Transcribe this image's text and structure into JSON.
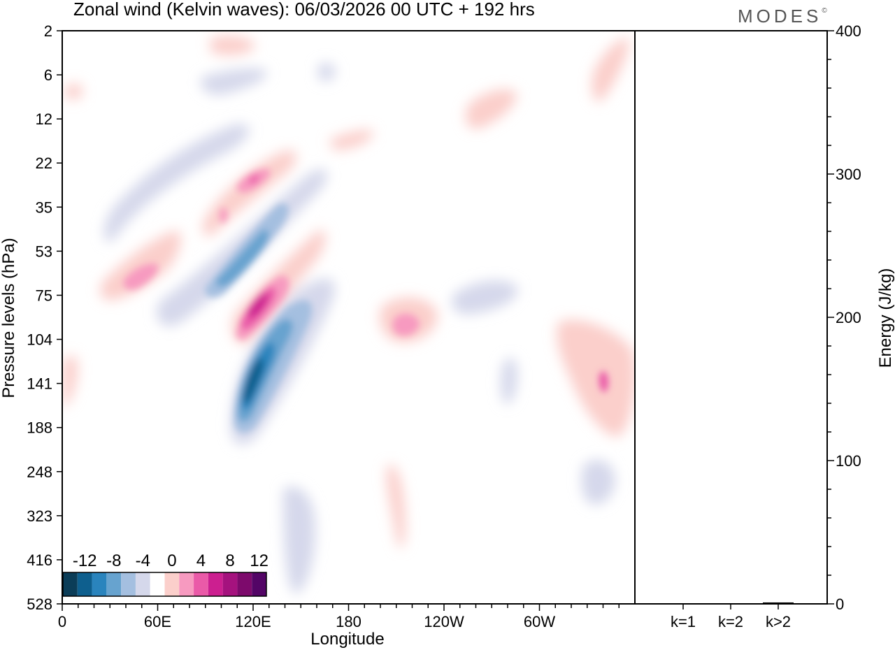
{
  "chart_data": [
    {
      "type": "heatmap",
      "title": "Zonal wind (Kelvin waves):  06/03/2026  00 UTC  + 192 hrs",
      "xlabel": "Longitude",
      "ylabel": "Pressure levels (hPa)",
      "x_ticks": [
        {
          "label": "0",
          "lon": 0
        },
        {
          "label": "60E",
          "lon": 60
        },
        {
          "label": "120E",
          "lon": 120
        },
        {
          "label": "180",
          "lon": 180
        },
        {
          "label": "120W",
          "lon": 240
        },
        {
          "label": "60W",
          "lon": 300
        }
      ],
      "xlim": [
        0,
        360
      ],
      "y_levels": [
        "2",
        "6",
        "12",
        "22",
        "35",
        "53",
        "75",
        "104",
        "141",
        "188",
        "248",
        "323",
        "416",
        "528"
      ],
      "contour_levels": [
        -14,
        -12,
        -10,
        -8,
        -6,
        -4,
        -2,
        2,
        4,
        6,
        8,
        10,
        12,
        14
      ],
      "colorbar": {
        "labels": [
          "-12",
          "-8",
          "-4",
          "0",
          "4",
          "8",
          "12"
        ],
        "colors": [
          "#0b3d58",
          "#0e5f8e",
          "#2a84bd",
          "#67a3cf",
          "#a4bfe0",
          "#d5d8eb",
          "#ffffff",
          "#fbcfcb",
          "#f79ac0",
          "#ea5aa8",
          "#cc1f90",
          "#a5127e",
          "#7d0a6c",
          "#530566"
        ]
      },
      "features": [
        {
          "sign": "negative",
          "lon": 124,
          "level_index": 8.3,
          "max_abs": 12
        },
        {
          "sign": "positive",
          "lon": 129,
          "level_index": 6.6,
          "max_abs": 10
        },
        {
          "sign": "negative",
          "lon": 104,
          "level_index": 5.7,
          "max_abs": 8
        },
        {
          "sign": "positive",
          "lon": 120,
          "level_index": 3.4,
          "max_abs": 8
        },
        {
          "sign": "positive",
          "lon": 42,
          "level_index": 5.7,
          "max_abs": 6
        },
        {
          "sign": "positive",
          "lon": 218,
          "level_index": 6.9,
          "max_abs": 6
        },
        {
          "sign": "positive",
          "lon": 342,
          "level_index": 8.0,
          "max_abs": 6
        },
        {
          "sign": "positive",
          "lon": 105,
          "level_index": 4.1,
          "max_abs": 6
        }
      ]
    },
    {
      "type": "bar",
      "ylabel": "Energy (J/kg)",
      "categories": [
        "k=1",
        "k=2",
        "k>2"
      ],
      "values": [
        0,
        0,
        1
      ],
      "ylim": [
        0,
        400
      ],
      "y_ticks": [
        "0",
        "100",
        "200",
        "300",
        "400"
      ]
    }
  ],
  "logo": "MODES",
  "logo_mark": "©"
}
